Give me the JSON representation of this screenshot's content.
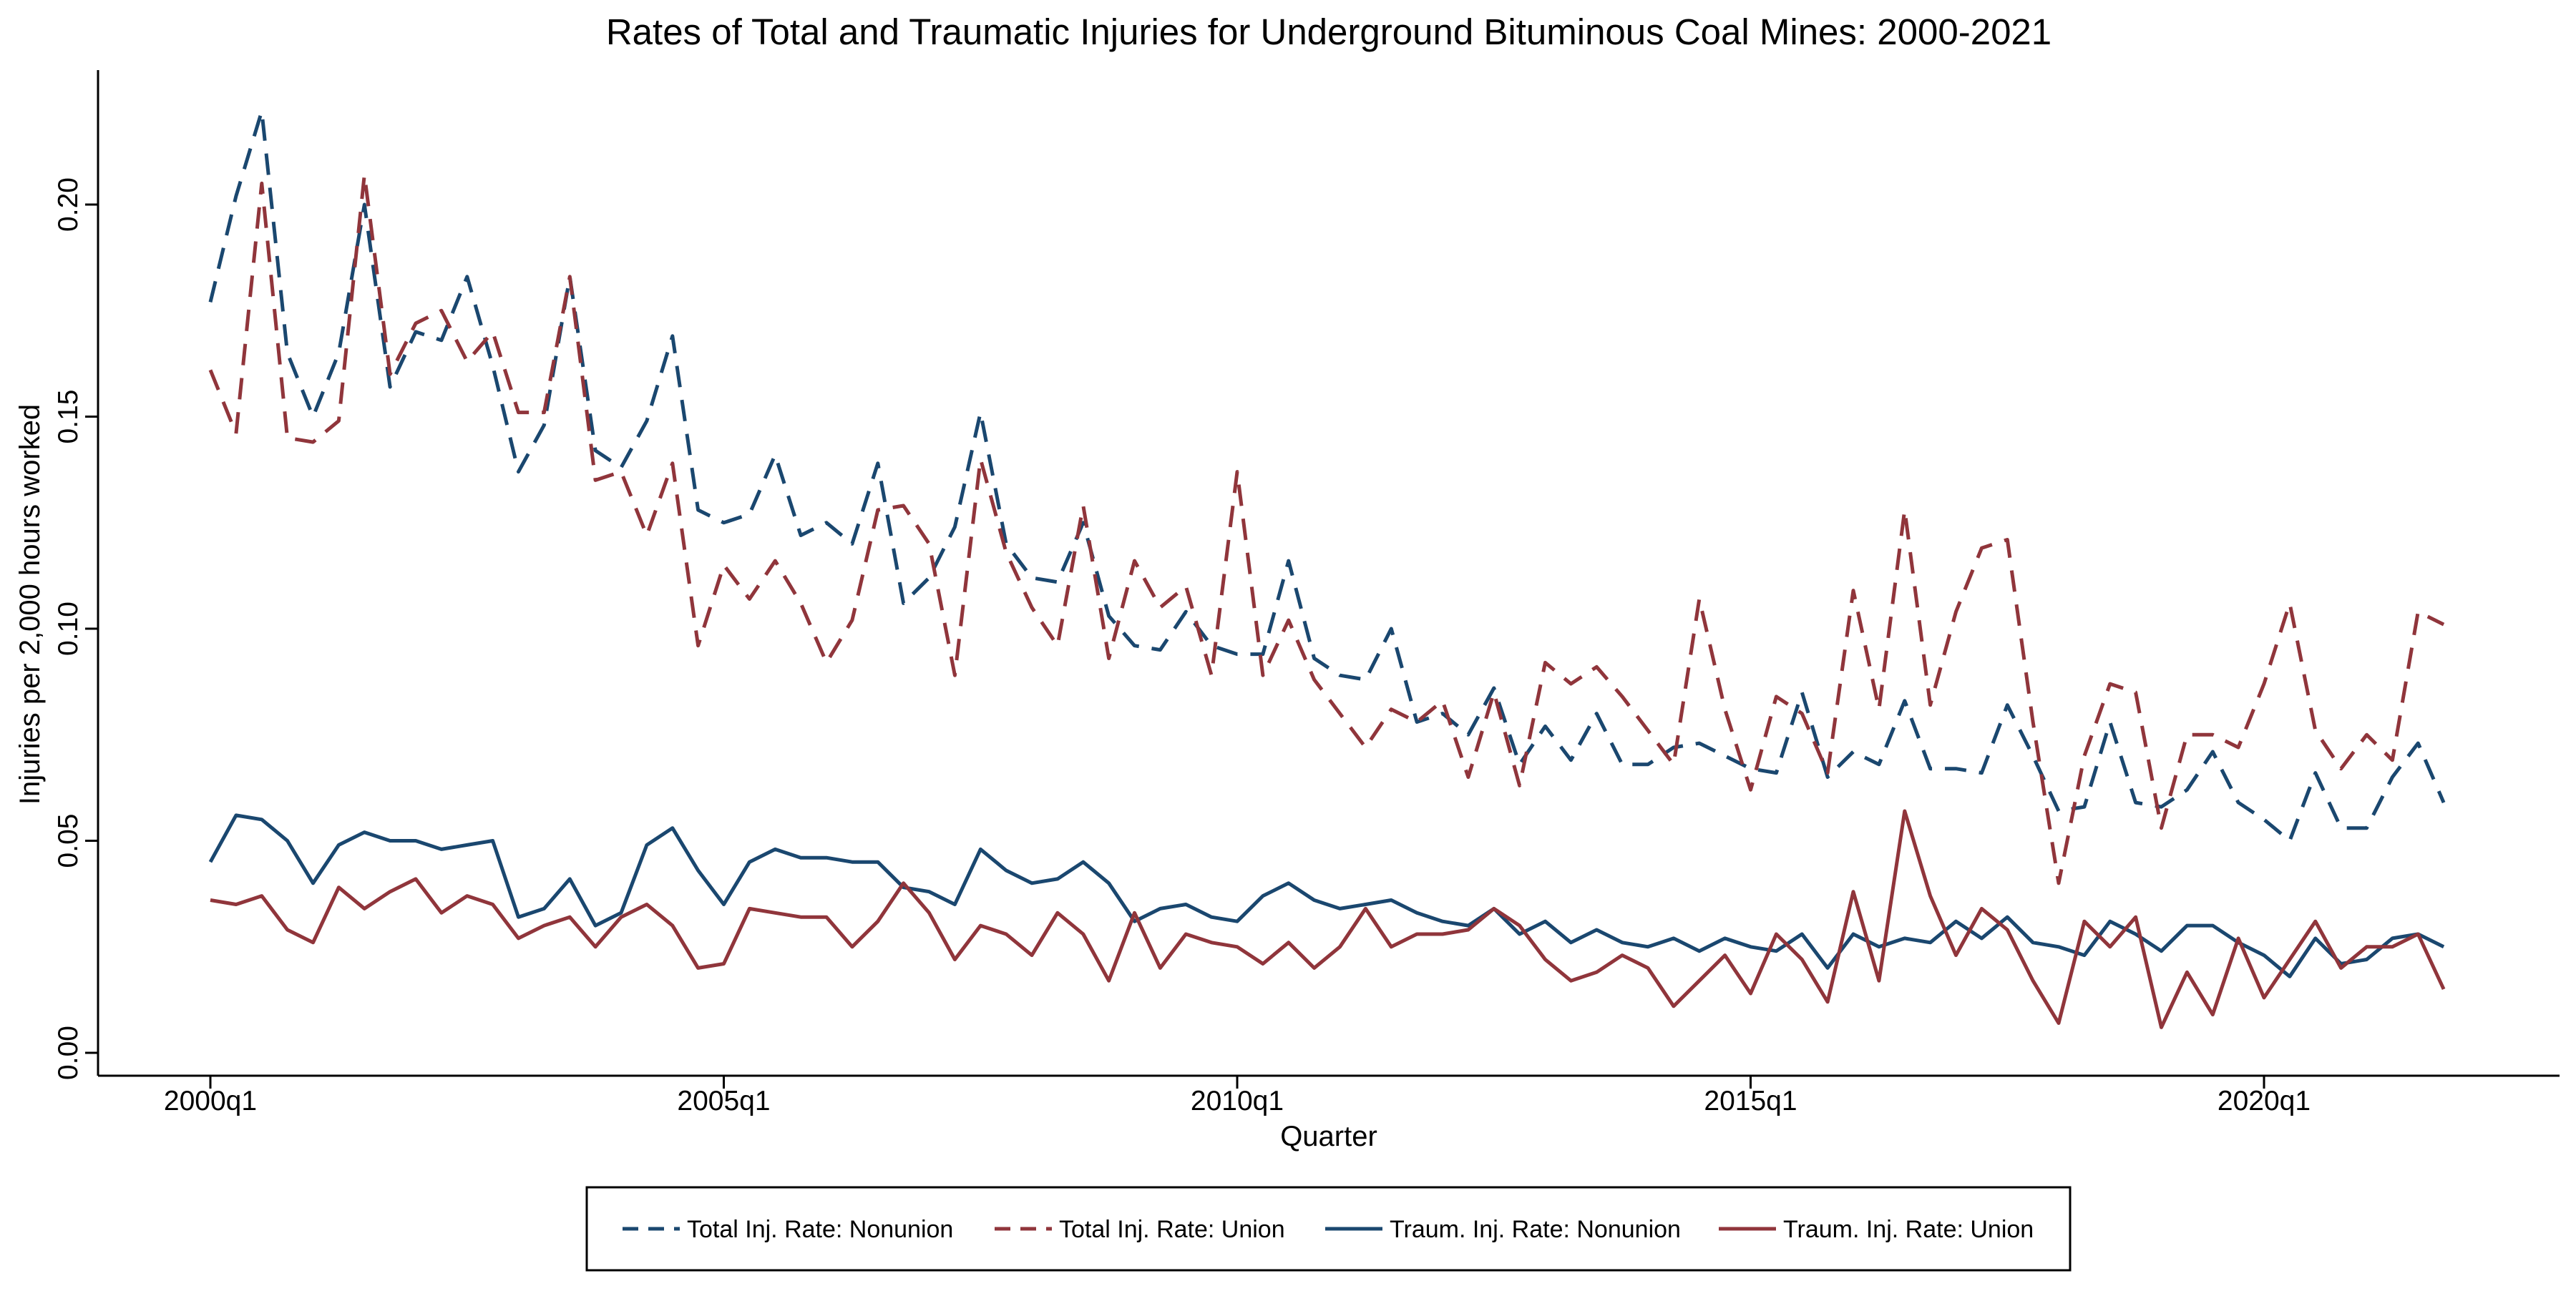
{
  "chart_data": {
    "type": "line",
    "title": "Rates of Total and Traumatic Injuries for Underground Bituminous Coal Mines: 2000-2021",
    "xlabel": "Quarter",
    "ylabel": "Injuries per 2,000 hours worked",
    "x_start": "2000q1",
    "ylim": [
      0.0,
      0.23
    ],
    "yticks": [
      0.0,
      0.05,
      0.1,
      0.15,
      0.2
    ],
    "ytick_labels": [
      "0.00",
      "0.05",
      "0.10",
      "0.15",
      "0.20"
    ],
    "xtick_labels": [
      "2000q1",
      "2005q1",
      "2010q1",
      "2015q1",
      "2020q1"
    ],
    "grid": false,
    "legend_position": "bottom",
    "colors": {
      "nonunion": "#1a476f",
      "union": "#90353b"
    },
    "series": [
      {
        "name": "Total Inj. Rate: Nonunion",
        "style": "dashed",
        "color": "#1a476f",
        "values": [
          0.177,
          0.202,
          0.222,
          0.165,
          0.15,
          0.165,
          0.2,
          0.157,
          0.17,
          0.168,
          0.183,
          0.162,
          0.137,
          0.148,
          0.183,
          0.142,
          0.138,
          0.149,
          0.169,
          0.128,
          0.125,
          0.127,
          0.141,
          0.122,
          0.125,
          0.12,
          0.139,
          0.106,
          0.112,
          0.124,
          0.151,
          0.12,
          0.112,
          0.111,
          0.125,
          0.103,
          0.096,
          0.095,
          0.104,
          0.096,
          0.094,
          0.094,
          0.116,
          0.093,
          0.089,
          0.088,
          0.1,
          0.078,
          0.08,
          0.075,
          0.086,
          0.068,
          0.077,
          0.069,
          0.08,
          0.068,
          0.068,
          0.072,
          0.073,
          0.07,
          0.067,
          0.066,
          0.085,
          0.065,
          0.071,
          0.068,
          0.083,
          0.067,
          0.067,
          0.066,
          0.082,
          0.07,
          0.057,
          0.058,
          0.078,
          0.059,
          0.058,
          0.062,
          0.071,
          0.059,
          0.055,
          0.05,
          0.066,
          0.053,
          0.053,
          0.065,
          0.073,
          0.059
        ]
      },
      {
        "name": "Total Inj. Rate: Union",
        "style": "dashed",
        "color": "#90353b",
        "values": [
          0.161,
          0.146,
          0.205,
          0.145,
          0.144,
          0.149,
          0.207,
          0.16,
          0.172,
          0.175,
          0.163,
          0.17,
          0.151,
          0.151,
          0.183,
          0.135,
          0.137,
          0.122,
          0.139,
          0.096,
          0.115,
          0.107,
          0.116,
          0.106,
          0.092,
          0.102,
          0.128,
          0.129,
          0.12,
          0.089,
          0.14,
          0.118,
          0.105,
          0.096,
          0.129,
          0.093,
          0.116,
          0.105,
          0.11,
          0.089,
          0.137,
          0.089,
          0.102,
          0.088,
          0.08,
          0.072,
          0.081,
          0.078,
          0.083,
          0.065,
          0.085,
          0.063,
          0.092,
          0.087,
          0.091,
          0.084,
          0.076,
          0.068,
          0.107,
          0.081,
          0.062,
          0.084,
          0.08,
          0.066,
          0.109,
          0.081,
          0.128,
          0.082,
          0.104,
          0.119,
          0.121,
          0.078,
          0.04,
          0.07,
          0.087,
          0.085,
          0.053,
          0.075,
          0.075,
          0.072,
          0.087,
          0.106,
          0.076,
          0.067,
          0.075,
          0.069,
          0.104,
          0.101
        ]
      },
      {
        "name": "Traum. Inj. Rate: Nonunion",
        "style": "solid",
        "color": "#1a476f",
        "values": [
          0.045,
          0.056,
          0.055,
          0.05,
          0.04,
          0.049,
          0.052,
          0.05,
          0.05,
          0.048,
          0.049,
          0.05,
          0.032,
          0.034,
          0.041,
          0.03,
          0.033,
          0.049,
          0.053,
          0.043,
          0.035,
          0.045,
          0.048,
          0.046,
          0.046,
          0.045,
          0.045,
          0.039,
          0.038,
          0.035,
          0.048,
          0.043,
          0.04,
          0.041,
          0.045,
          0.04,
          0.031,
          0.034,
          0.035,
          0.032,
          0.031,
          0.037,
          0.04,
          0.036,
          0.034,
          0.035,
          0.036,
          0.033,
          0.031,
          0.03,
          0.034,
          0.028,
          0.031,
          0.026,
          0.029,
          0.026,
          0.025,
          0.027,
          0.024,
          0.027,
          0.025,
          0.024,
          0.028,
          0.02,
          0.028,
          0.025,
          0.027,
          0.026,
          0.031,
          0.027,
          0.032,
          0.026,
          0.025,
          0.023,
          0.031,
          0.028,
          0.024,
          0.03,
          0.03,
          0.026,
          0.023,
          0.018,
          0.027,
          0.021,
          0.022,
          0.027,
          0.028,
          0.025
        ]
      },
      {
        "name": "Traum. Inj. Rate: Union",
        "style": "solid",
        "color": "#90353b",
        "values": [
          0.036,
          0.035,
          0.037,
          0.029,
          0.026,
          0.039,
          0.034,
          0.038,
          0.041,
          0.033,
          0.037,
          0.035,
          0.027,
          0.03,
          0.032,
          0.025,
          0.032,
          0.035,
          0.03,
          0.02,
          0.021,
          0.034,
          0.033,
          0.032,
          0.032,
          0.025,
          0.031,
          0.04,
          0.033,
          0.022,
          0.03,
          0.028,
          0.023,
          0.033,
          0.028,
          0.017,
          0.033,
          0.02,
          0.028,
          0.026,
          0.025,
          0.021,
          0.026,
          0.02,
          0.025,
          0.034,
          0.025,
          0.028,
          0.028,
          0.029,
          0.034,
          0.03,
          0.022,
          0.017,
          0.019,
          0.023,
          0.02,
          0.011,
          0.017,
          0.023,
          0.014,
          0.028,
          0.022,
          0.012,
          0.038,
          0.017,
          0.057,
          0.037,
          0.023,
          0.034,
          0.029,
          0.017,
          0.007,
          0.031,
          0.025,
          0.032,
          0.006,
          0.019,
          0.009,
          0.027,
          0.013,
          0.022,
          0.031,
          0.02,
          0.025,
          0.025,
          0.028,
          0.015
        ]
      }
    ]
  }
}
